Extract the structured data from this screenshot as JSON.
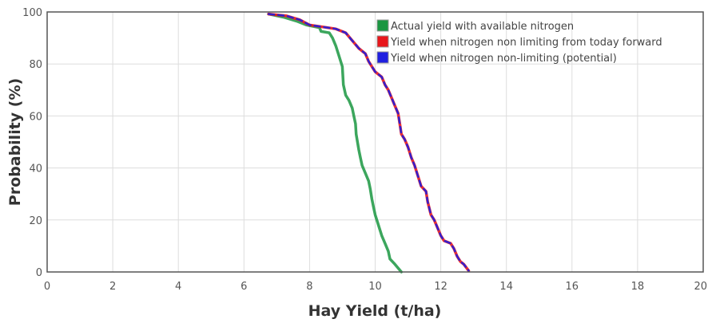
{
  "chart_data": {
    "type": "line",
    "title": "",
    "xlabel": "Hay Yield (t/ha)",
    "ylabel": "Probability (%)",
    "xlim": [
      0,
      20
    ],
    "ylim": [
      0,
      100
    ],
    "xticks": [
      0,
      2,
      4,
      6,
      8,
      10,
      12,
      14,
      16,
      18,
      20
    ],
    "yticks": [
      0,
      20,
      40,
      60,
      80,
      100
    ],
    "grid": true,
    "legend_position": "top-right",
    "series": [
      {
        "name": "Actual yield with available nitrogen",
        "color": "#1a9641",
        "points": [
          [
            6.75,
            99.2
          ],
          [
            7.2,
            98.0
          ],
          [
            7.6,
            96.5
          ],
          [
            7.9,
            95.0
          ],
          [
            8.3,
            94.0
          ],
          [
            8.35,
            92.5
          ],
          [
            8.6,
            92.0
          ],
          [
            8.7,
            90.0
          ],
          [
            8.8,
            87.0
          ],
          [
            8.9,
            83.0
          ],
          [
            9.0,
            79.0
          ],
          [
            9.03,
            72.0
          ],
          [
            9.1,
            68.0
          ],
          [
            9.2,
            66.0
          ],
          [
            9.3,
            63.0
          ],
          [
            9.35,
            60.0
          ],
          [
            9.4,
            57.0
          ],
          [
            9.42,
            53.0
          ],
          [
            9.5,
            47.0
          ],
          [
            9.55,
            44.0
          ],
          [
            9.6,
            41.0
          ],
          [
            9.7,
            38.0
          ],
          [
            9.8,
            35.0
          ],
          [
            9.85,
            32.0
          ],
          [
            9.9,
            28.0
          ],
          [
            9.95,
            25.0
          ],
          [
            10.0,
            22.0
          ],
          [
            10.1,
            18.0
          ],
          [
            10.2,
            14.0
          ],
          [
            10.3,
            11.0
          ],
          [
            10.4,
            8.0
          ],
          [
            10.45,
            5.0
          ],
          [
            10.6,
            3.0
          ],
          [
            10.8,
            0.0
          ]
        ]
      },
      {
        "name": "Yield when nitrogen non limiting from today forward",
        "color": "#e8161b",
        "points": [
          [
            6.75,
            99.2
          ],
          [
            7.3,
            98.5
          ],
          [
            7.7,
            97.0
          ],
          [
            8.0,
            95.0
          ],
          [
            8.8,
            93.5
          ],
          [
            9.1,
            92.0
          ],
          [
            9.3,
            89.0
          ],
          [
            9.5,
            86.0
          ],
          [
            9.7,
            84.0
          ],
          [
            9.8,
            81.0
          ],
          [
            9.9,
            79.0
          ],
          [
            10.0,
            77.0
          ],
          [
            10.2,
            75.0
          ],
          [
            10.3,
            72.0
          ],
          [
            10.4,
            70.0
          ],
          [
            10.5,
            67.0
          ],
          [
            10.6,
            64.0
          ],
          [
            10.7,
            61.0
          ],
          [
            10.75,
            57.0
          ],
          [
            10.8,
            53.0
          ],
          [
            10.9,
            51.0
          ],
          [
            11.0,
            48.0
          ],
          [
            11.1,
            44.0
          ],
          [
            11.2,
            41.0
          ],
          [
            11.3,
            37.0
          ],
          [
            11.4,
            33.0
          ],
          [
            11.55,
            31.0
          ],
          [
            11.6,
            27.0
          ],
          [
            11.7,
            22.0
          ],
          [
            11.8,
            20.0
          ],
          [
            11.9,
            17.0
          ],
          [
            12.0,
            14.0
          ],
          [
            12.1,
            12.0
          ],
          [
            12.3,
            11.0
          ],
          [
            12.4,
            9.0
          ],
          [
            12.5,
            6.0
          ],
          [
            12.6,
            4.0
          ],
          [
            12.7,
            3.0
          ],
          [
            12.85,
            0.5
          ]
        ]
      },
      {
        "name": "Yield when nitrogen non-limiting (potential)",
        "color": "#1f1fe0",
        "points": [
          [
            6.75,
            99.2
          ],
          [
            7.3,
            98.5
          ],
          [
            7.7,
            97.0
          ],
          [
            8.0,
            95.0
          ],
          [
            8.8,
            93.5
          ],
          [
            9.1,
            92.0
          ],
          [
            9.3,
            89.0
          ],
          [
            9.5,
            86.0
          ],
          [
            9.7,
            84.0
          ],
          [
            9.8,
            81.0
          ],
          [
            9.9,
            79.0
          ],
          [
            10.0,
            77.0
          ],
          [
            10.2,
            75.0
          ],
          [
            10.3,
            72.0
          ],
          [
            10.4,
            70.0
          ],
          [
            10.5,
            67.0
          ],
          [
            10.6,
            64.0
          ],
          [
            10.7,
            61.0
          ],
          [
            10.75,
            57.0
          ],
          [
            10.8,
            53.0
          ],
          [
            10.9,
            51.0
          ],
          [
            11.0,
            48.0
          ],
          [
            11.1,
            44.0
          ],
          [
            11.2,
            41.0
          ],
          [
            11.3,
            37.0
          ],
          [
            11.4,
            33.0
          ],
          [
            11.55,
            31.0
          ],
          [
            11.6,
            27.0
          ],
          [
            11.7,
            22.0
          ],
          [
            11.8,
            20.0
          ],
          [
            11.9,
            17.0
          ],
          [
            12.0,
            14.0
          ],
          [
            12.1,
            12.0
          ],
          [
            12.3,
            11.0
          ],
          [
            12.4,
            9.0
          ],
          [
            12.5,
            6.0
          ],
          [
            12.6,
            4.0
          ],
          [
            12.7,
            3.0
          ],
          [
            12.85,
            0.5
          ]
        ]
      }
    ]
  }
}
